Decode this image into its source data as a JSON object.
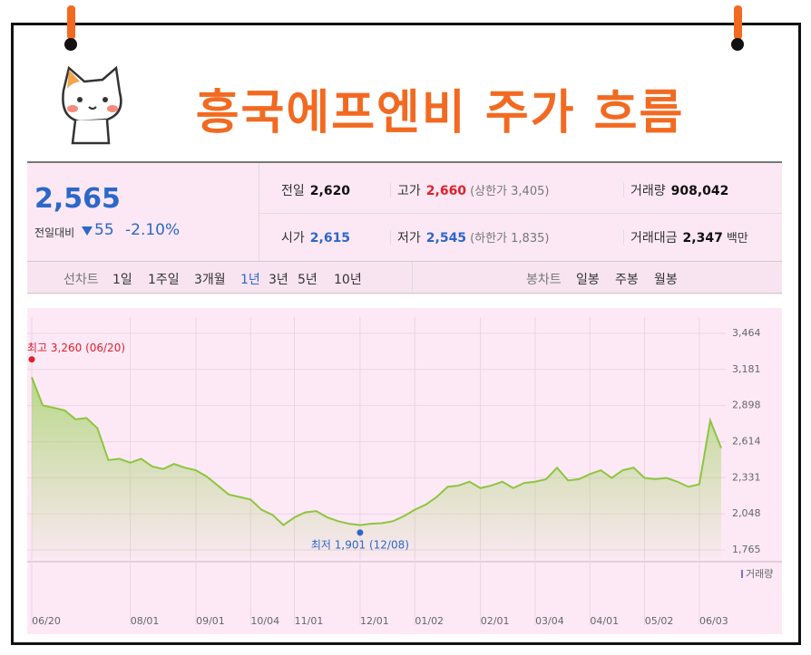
{
  "header": {
    "title": "흥국에프엔비 주가 흐름"
  },
  "quote": {
    "price": "2,565",
    "change_label": "전일대비",
    "change": "55",
    "change_rate": "-2.10%",
    "fields": [
      {
        "label": "전일",
        "value": "2,620"
      },
      {
        "label": "고가",
        "value": "2,660",
        "note": "(상한가 3,405)"
      },
      {
        "label": "거래량",
        "value": "908,042"
      },
      {
        "label": "시가",
        "value": "2,615"
      },
      {
        "label": "저가",
        "value": "2,545",
        "note": "(하한가 1,835)"
      },
      {
        "label": "거래대금",
        "value": "2,347",
        "unit": "백만"
      }
    ]
  },
  "tabs": {
    "line_label": "선차트",
    "line": [
      "1일",
      "1주일",
      "3개월",
      "1년",
      "3년",
      "5년",
      "10년"
    ],
    "candle_label": "봉차트",
    "candle": [
      "일봉",
      "주봉",
      "월봉"
    ]
  },
  "chart_data": {
    "type": "line",
    "categories": [
      "06/20",
      null,
      null,
      null,
      null,
      null,
      null,
      null,
      null,
      "08/01",
      null,
      null,
      null,
      null,
      null,
      "09/01",
      null,
      null,
      null,
      null,
      "10/04",
      null,
      null,
      null,
      "11/01",
      null,
      null,
      null,
      null,
      null,
      "12/01",
      null,
      null,
      null,
      null,
      "01/02",
      null,
      null,
      null,
      null,
      null,
      "02/01",
      null,
      null,
      null,
      null,
      "03/04",
      null,
      null,
      null,
      null,
      "04/01",
      null,
      null,
      null,
      null,
      "05/02",
      null,
      null,
      null,
      null,
      "06/03",
      null,
      null
    ],
    "series": [
      {
        "name": "주가",
        "color": "#8dc63f",
        "values": [
          3120,
          2900,
          2880,
          2860,
          2790,
          2800,
          2720,
          2470,
          2480,
          2450,
          2480,
          2420,
          2400,
          2440,
          2410,
          2390,
          2340,
          2270,
          2200,
          2180,
          2160,
          2080,
          2040,
          1960,
          2020,
          2060,
          2070,
          2020,
          1990,
          1970,
          1960,
          1970,
          1975,
          1990,
          2030,
          2080,
          2120,
          2180,
          2260,
          2270,
          2300,
          2250,
          2270,
          2300,
          2250,
          2290,
          2300,
          2320,
          2410,
          2310,
          2320,
          2360,
          2390,
          2330,
          2390,
          2410,
          2330,
          2320,
          2330,
          2300,
          2260,
          2280,
          2780,
          2565
        ]
      }
    ],
    "ylim": [
      1765,
      3464
    ],
    "yticks": [
      {
        "value": 1765,
        "label": "1,765"
      },
      {
        "value": 2048,
        "label": "2,048"
      },
      {
        "value": 2331,
        "label": "2,331"
      },
      {
        "value": 2614,
        "label": "2,614"
      },
      {
        "value": 2898,
        "label": "2,898"
      },
      {
        "value": 3181,
        "label": "3,181"
      },
      {
        "value": 3464,
        "label": "3,464"
      }
    ],
    "grid": true,
    "annotations": [
      {
        "text": "최고 3,260 (06/20)",
        "value": 3260,
        "index": 0,
        "color": "#e0202a"
      },
      {
        "text": "최저 1,901 (12/08)",
        "value": 1901,
        "index": 30,
        "color": "#2d67c9"
      }
    ],
    "volume_label": "거래량"
  }
}
